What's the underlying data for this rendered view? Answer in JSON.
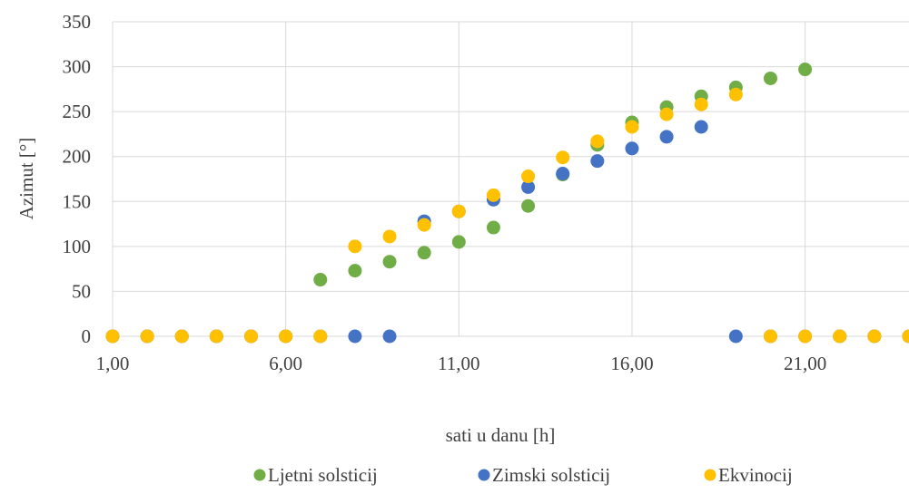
{
  "chart_data": {
    "type": "scatter",
    "title": "",
    "xlabel": "sati u danu [h]",
    "ylabel": "Azimut [°]",
    "xlim": [
      1,
      24
    ],
    "ylim": [
      0,
      350
    ],
    "x_ticks": [
      1,
      6,
      11,
      16,
      21
    ],
    "x_tick_labels": [
      "1,00",
      "6,00",
      "11,00",
      "16,00",
      "21,00"
    ],
    "y_ticks": [
      0,
      50,
      100,
      150,
      200,
      250,
      300,
      350
    ],
    "y_tick_labels": [
      "0",
      "50",
      "100",
      "150",
      "200",
      "250",
      "300",
      "350"
    ],
    "grid": true,
    "legend_position": "bottom",
    "series": [
      {
        "name": "Ljetni solsticij",
        "color": "#70ad47",
        "x": [
          1,
          2,
          3,
          4,
          5,
          6,
          7,
          8,
          9,
          10,
          11,
          12,
          13,
          14,
          15,
          16,
          17,
          18,
          19,
          20,
          21,
          22,
          23,
          24
        ],
        "y": [
          0,
          0,
          0,
          0,
          0,
          0,
          63,
          73,
          83,
          93,
          105,
          121,
          145,
          180,
          213,
          238,
          255,
          267,
          277,
          287,
          297,
          0,
          0,
          0
        ]
      },
      {
        "name": "Zimski solsticij",
        "color": "#4472c4",
        "x": [
          1,
          2,
          3,
          4,
          5,
          6,
          7,
          8,
          9,
          10,
          11,
          12,
          13,
          14,
          15,
          16,
          17,
          18,
          19,
          20,
          21,
          22,
          23,
          24
        ],
        "y": [
          0,
          0,
          0,
          0,
          0,
          0,
          0,
          0,
          0,
          128,
          139,
          152,
          166,
          181,
          195,
          209,
          222,
          233,
          0,
          0,
          0,
          0,
          0,
          0
        ]
      },
      {
        "name": "Ekvinocij",
        "color": "#ffc000",
        "x": [
          1,
          2,
          3,
          4,
          5,
          6,
          7,
          8,
          9,
          10,
          11,
          12,
          13,
          14,
          15,
          16,
          17,
          18,
          19,
          20,
          21,
          22,
          23,
          24
        ],
        "y": [
          0,
          0,
          0,
          0,
          0,
          0,
          0,
          100,
          111,
          124,
          139,
          157,
          178,
          199,
          217,
          233,
          247,
          258,
          269,
          0,
          0,
          0,
          0,
          0
        ]
      }
    ]
  }
}
